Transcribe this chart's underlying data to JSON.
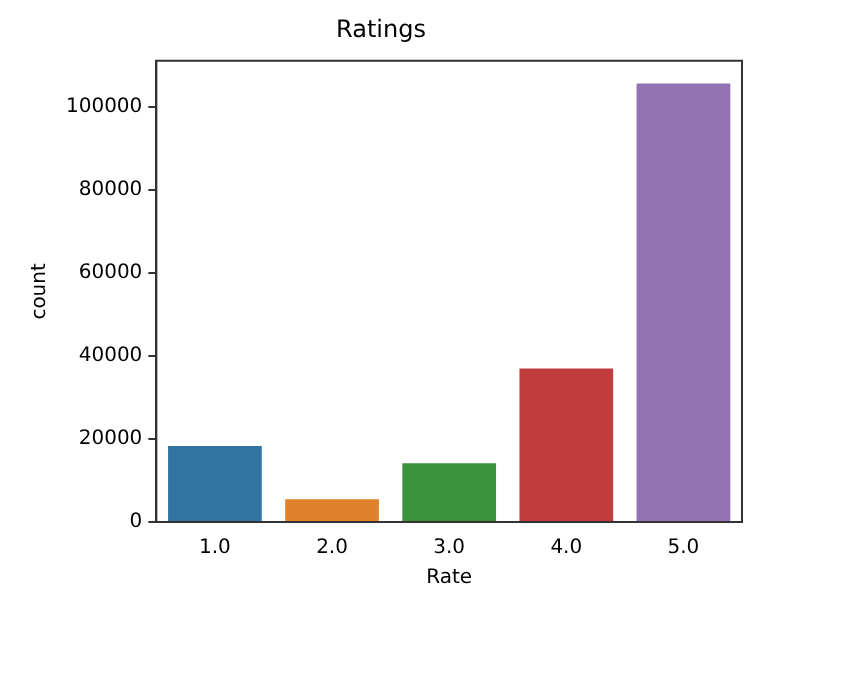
{
  "chart_data": {
    "type": "bar",
    "title": "Ratings",
    "xlabel": "Rate",
    "ylabel": "count",
    "categories": [
      "1.0",
      "2.0",
      "3.0",
      "4.0",
      "5.0"
    ],
    "values": [
      18300,
      5460,
      14160,
      37020,
      105750
    ],
    "colors": [
      "#3274a1",
      "#e1812c",
      "#3a923a",
      "#c03d3e",
      "#9372b2"
    ],
    "ylim": [
      0,
      111200
    ],
    "yticks": [
      0,
      20000,
      40000,
      60000,
      80000,
      100000
    ],
    "grid": false,
    "legend": false
  }
}
